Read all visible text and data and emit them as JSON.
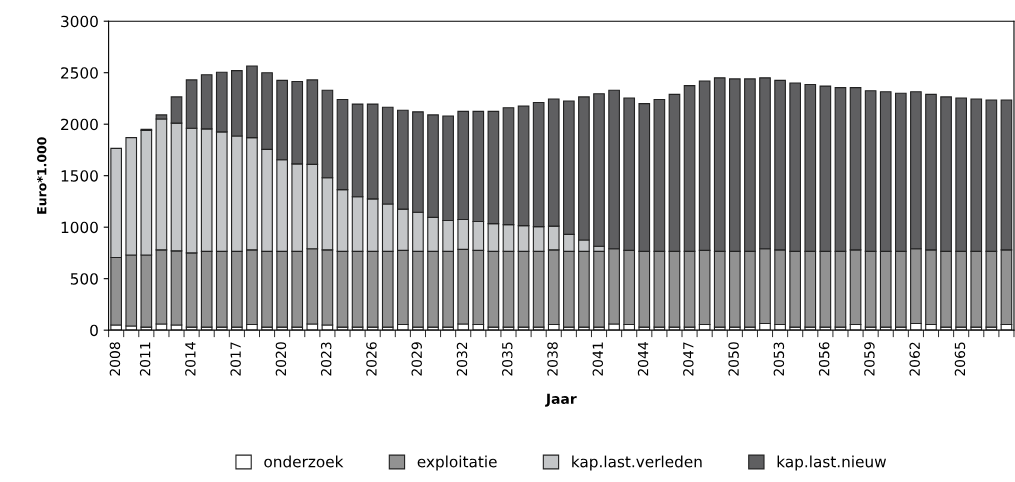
{
  "chart_data": {
    "type": "bar",
    "stacked": true,
    "xlabel": "Jaar",
    "ylabel": "Euro*1.000",
    "categories": [
      "2008",
      null,
      "2011",
      null,
      null,
      "2014",
      null,
      null,
      "2017",
      null,
      null,
      "2020",
      null,
      null,
      "2023",
      null,
      null,
      "2026",
      null,
      null,
      "2029",
      null,
      null,
      "2032",
      null,
      null,
      "2035",
      null,
      null,
      "2038",
      null,
      null,
      "2041",
      null,
      null,
      "2044",
      null,
      null,
      "2047",
      null,
      null,
      "2050",
      null,
      null,
      "2053",
      null,
      null,
      "2056",
      null,
      null,
      "2059",
      null,
      null,
      "2062",
      null,
      null,
      "2065",
      null,
      null,
      null
    ],
    "series": [
      {
        "name": "onderzoek",
        "color": "#ffffff",
        "values": [
          50,
          40,
          30,
          60,
          50,
          30,
          30,
          30,
          30,
          55,
          30,
          30,
          30,
          60,
          50,
          30,
          30,
          30,
          30,
          55,
          30,
          30,
          30,
          60,
          55,
          30,
          30,
          30,
          30,
          55,
          30,
          30,
          30,
          60,
          55,
          30,
          30,
          30,
          30,
          55,
          30,
          30,
          30,
          65,
          55,
          30,
          30,
          30,
          30,
          55,
          30,
          30,
          30,
          65,
          55,
          30,
          30,
          30,
          30,
          55
        ]
      },
      {
        "name": "exploitatie",
        "color": "#929292",
        "values": [
          655,
          690,
          700,
          720,
          720,
          720,
          735,
          735,
          735,
          725,
          735,
          735,
          735,
          730,
          730,
          735,
          735,
          735,
          735,
          720,
          735,
          735,
          735,
          725,
          720,
          735,
          735,
          735,
          735,
          725,
          735,
          735,
          735,
          730,
          720,
          735,
          735,
          735,
          735,
          720,
          735,
          735,
          735,
          725,
          725,
          735,
          735,
          735,
          735,
          725,
          735,
          735,
          735,
          725,
          725,
          735,
          735,
          735,
          735,
          725
        ]
      },
      {
        "name": "kap.last.verleden",
        "color": "#c4c6c8",
        "values": [
          1060,
          1140,
          1210,
          1270,
          1240,
          1210,
          1190,
          1160,
          1120,
          1090,
          990,
          890,
          850,
          820,
          700,
          600,
          530,
          510,
          460,
          400,
          380,
          330,
          300,
          290,
          280,
          270,
          260,
          250,
          240,
          230,
          165,
          110,
          50,
          0,
          0,
          0,
          0,
          0,
          0,
          0,
          0,
          0,
          0,
          0,
          0,
          0,
          0,
          0,
          0,
          0,
          0,
          0,
          0,
          0,
          0,
          0,
          0,
          0,
          0,
          0
        ]
      },
      {
        "name": "kap.last.nieuw",
        "color": "#5f5f61",
        "values": [
          0,
          0,
          10,
          40,
          255,
          470,
          525,
          580,
          635,
          695,
          745,
          770,
          800,
          820,
          850,
          875,
          900,
          920,
          940,
          960,
          975,
          995,
          1015,
          1050,
          1070,
          1090,
          1135,
          1160,
          1205,
          1235,
          1295,
          1390,
          1480,
          1540,
          1480,
          1435,
          1475,
          1525,
          1610,
          1645,
          1685,
          1675,
          1675,
          1660,
          1645,
          1635,
          1620,
          1605,
          1590,
          1575,
          1560,
          1550,
          1535,
          1525,
          1510,
          1500,
          1490,
          1480,
          1470,
          1455
        ]
      }
    ],
    "ylim": [
      0,
      3000
    ],
    "yticks": [
      0,
      500,
      1000,
      1500,
      2000,
      2500,
      3000
    ],
    "grid": false,
    "legend": "bottom"
  }
}
